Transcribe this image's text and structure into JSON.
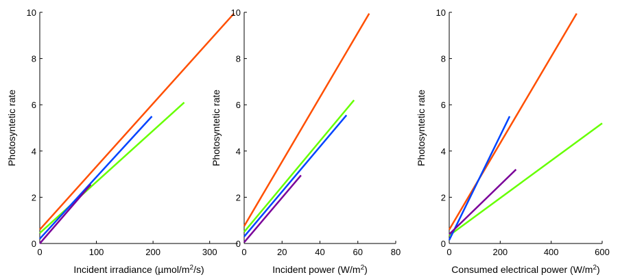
{
  "chart_data": [
    {
      "type": "line",
      "xlabel": "Incident irradiance (µmol/m²/s)",
      "ylabel": "Photosyntetic rate",
      "xlim": [
        0,
        350
      ],
      "ylim": [
        0,
        10
      ],
      "xticks": [
        0,
        100,
        200,
        300
      ],
      "yticks": [
        0,
        2,
        4,
        6,
        8,
        10
      ],
      "series": [
        {
          "color": "#ff4f00",
          "x": [
            0,
            343
          ],
          "y": [
            0.6,
            9.95
          ]
        },
        {
          "color": "#66ff00",
          "x": [
            0,
            255
          ],
          "y": [
            0.45,
            6.1
          ]
        },
        {
          "color": "#0044ff",
          "x": [
            0,
            198
          ],
          "y": [
            0.2,
            5.5
          ]
        },
        {
          "color": "#7a0099",
          "x": [
            0,
            90
          ],
          "y": [
            0.0,
            2.55
          ]
        }
      ]
    },
    {
      "type": "line",
      "xlabel": "Incident power (W/m²)",
      "ylabel": "Photosyntetic rate",
      "xlim": [
        0,
        80
      ],
      "ylim": [
        0,
        10
      ],
      "xticks": [
        0,
        20,
        40,
        60,
        80
      ],
      "yticks": [
        0,
        2,
        4,
        6,
        8,
        10
      ],
      "series": [
        {
          "color": "#ff4f00",
          "x": [
            0,
            66
          ],
          "y": [
            0.75,
            9.95
          ]
        },
        {
          "color": "#66ff00",
          "x": [
            0,
            58
          ],
          "y": [
            0.5,
            6.2
          ]
        },
        {
          "color": "#0044ff",
          "x": [
            0,
            54
          ],
          "y": [
            0.3,
            5.55
          ]
        },
        {
          "color": "#7a0099",
          "x": [
            0,
            30
          ],
          "y": [
            0.05,
            2.95
          ]
        }
      ]
    },
    {
      "type": "line",
      "xlabel": "Consumed electrical power (W/m²)",
      "ylabel": "Photosyntetic rate",
      "xlim": [
        0,
        600
      ],
      "ylim": [
        0,
        10
      ],
      "xticks": [
        0,
        200,
        400,
        600
      ],
      "yticks": [
        0,
        2,
        4,
        6,
        8,
        10
      ],
      "series": [
        {
          "color": "#ff4f00",
          "x": [
            0,
            500
          ],
          "y": [
            0.6,
            9.95
          ]
        },
        {
          "color": "#66ff00",
          "x": [
            0,
            600
          ],
          "y": [
            0.35,
            5.2
          ]
        },
        {
          "color": "#0044ff",
          "x": [
            0,
            237
          ],
          "y": [
            0.15,
            5.5
          ]
        },
        {
          "color": "#7a0099",
          "x": [
            0,
            262
          ],
          "y": [
            0.4,
            3.2
          ]
        }
      ]
    }
  ]
}
